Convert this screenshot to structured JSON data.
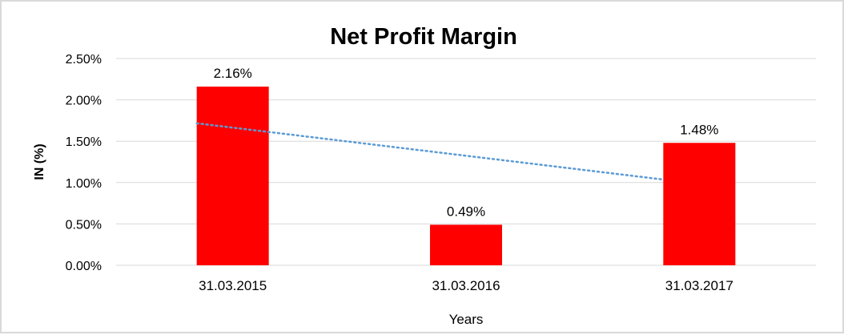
{
  "chart_data": {
    "type": "bar",
    "title": "Net Profit Margin",
    "xlabel": "Years",
    "ylabel": "IN (%)",
    "categories": [
      "31.03.2015",
      "31.03.2016",
      "31.03.2017"
    ],
    "values": [
      2.16,
      0.49,
      1.48
    ],
    "data_labels": [
      "2.16%",
      "0.49%",
      "1.48%"
    ],
    "ylim": [
      0,
      2.5
    ],
    "yticks": [
      0,
      0.5,
      1.0,
      1.5,
      2.0,
      2.5
    ],
    "ytick_labels": [
      "0.00%",
      "0.50%",
      "1.00%",
      "1.50%",
      "2.00%",
      "2.50%"
    ],
    "grid": true,
    "trendline": {
      "type": "linear",
      "style": "dotted",
      "color": "#5b9bd5"
    },
    "bar_color": "#ff0000"
  }
}
